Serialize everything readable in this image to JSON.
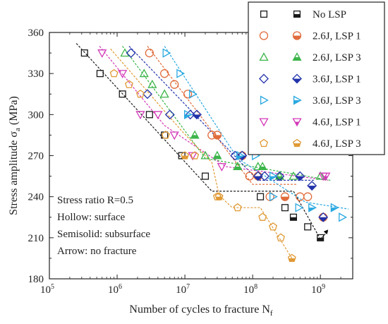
{
  "chart_data": {
    "type": "scatter",
    "x_scale": "log",
    "xlim": [
      100000,
      3000000000
    ],
    "ylim": [
      180,
      360
    ],
    "yticks": [
      180,
      210,
      240,
      270,
      300,
      330,
      360
    ],
    "xticks": [
      {
        "value": 100000,
        "base": "10",
        "exp": "5"
      },
      {
        "value": 1000000,
        "base": "10",
        "exp": "6"
      },
      {
        "value": 10000000,
        "base": "10",
        "exp": "7"
      },
      {
        "value": 100000000,
        "base": "10",
        "exp": "8"
      },
      {
        "value": 1000000000,
        "base": "10",
        "exp": "9"
      }
    ],
    "xlabel": "Number of cycles to fracture N",
    "xlabel_sub": "f",
    "ylabel": "Stress amplitude σ",
    "ylabel_sub": "a",
    "ylabel_unit": " (MPa)",
    "annotations": [
      "Stress ratio R=0.5",
      "Hollow: surface",
      "Semisolid: subsurface",
      "Arrow: no fracture"
    ],
    "legend_position": "top-right",
    "series": [
      {
        "name": "No LSP",
        "marker": "square",
        "color": "#1a1a1a",
        "hollow": [
          [
            330000,
            345
          ],
          [
            560000,
            330
          ],
          [
            1200000,
            315
          ],
          [
            3000000,
            300
          ],
          [
            5000000,
            285
          ],
          [
            9000000,
            270
          ],
          [
            20000000,
            255
          ],
          [
            130000000,
            240
          ],
          [
            300000000,
            232
          ],
          [
            650000000,
            218
          ]
        ],
        "solid": [
          [
            400000000,
            225
          ],
          [
            1000000000,
            210
          ]
        ],
        "fit": [
          [
            250000,
            352
          ],
          [
            25000000,
            244
          ],
          [
            400000000,
            244
          ],
          [
            1000000000,
            209
          ],
          [
            1300000000,
            215
          ]
        ],
        "arrow": [
          1300000000,
          216
        ]
      },
      {
        "name": "2.6J, LSP 1",
        "marker": "circle",
        "color": "#e06c3c",
        "hollow": [
          [
            3000000,
            345
          ],
          [
            5000000,
            330
          ],
          [
            7000000,
            322
          ],
          [
            11000000,
            315
          ],
          [
            25000000,
            285
          ],
          [
            90000000,
            255
          ],
          [
            180000000,
            240
          ],
          [
            500000000,
            240
          ],
          [
            650000000,
            240
          ]
        ],
        "solid": [
          [
            30000000,
            285
          ],
          [
            70000000,
            270
          ],
          [
            120000000,
            255
          ],
          [
            300000000,
            240
          ],
          [
            1100000000,
            225
          ]
        ],
        "fit": [
          [
            2800000,
            350
          ],
          [
            100000000,
            249
          ],
          [
            450000000,
            249
          ]
        ]
      },
      {
        "name": "2.6J, LSP 3",
        "marker": "triangle-up",
        "color": "#3cb54a",
        "hollow": [
          [
            1300000,
            345
          ],
          [
            2500000,
            330
          ],
          [
            3300000,
            322
          ],
          [
            5000000,
            315
          ],
          [
            20000000,
            270
          ],
          [
            60000000,
            262
          ],
          [
            120000000,
            262
          ],
          [
            400000000,
            255
          ],
          [
            1000000000,
            255
          ]
        ],
        "solid": [
          [
            14000000,
            285
          ],
          [
            30000000,
            270
          ],
          [
            60000000,
            262
          ],
          [
            140000000,
            262
          ],
          [
            250000000,
            255
          ]
        ],
        "fit": [
          [
            1200000,
            350
          ],
          [
            20000000,
            268
          ],
          [
            1400000000,
            252
          ]
        ]
      },
      {
        "name": "3.6J, LSP 1",
        "marker": "diamond",
        "color": "#2233aa",
        "hollow": [
          [
            1600000,
            345
          ],
          [
            2800000,
            315
          ],
          [
            6000000,
            300
          ],
          [
            12000000,
            300
          ],
          [
            55000000,
            270
          ],
          [
            150000000,
            255
          ],
          [
            250000000,
            255
          ]
        ],
        "solid": [
          [
            15000000,
            300
          ],
          [
            70000000,
            270
          ],
          [
            120000000,
            255
          ],
          [
            500000000,
            255
          ],
          [
            750000000,
            248
          ],
          [
            1100000000,
            225
          ]
        ],
        "fit": [
          [
            1500000,
            350
          ],
          [
            120000000,
            252
          ],
          [
            800000000,
            252
          ]
        ]
      },
      {
        "name": "3.6J, LSP 3",
        "marker": "triangle-right",
        "color": "#2aa8e0",
        "hollow": [
          [
            5300000,
            345
          ],
          [
            8500000,
            330
          ],
          [
            13000000,
            315
          ],
          [
            110000000,
            270
          ],
          [
            200000000,
            240
          ],
          [
            480000000,
            232
          ],
          [
            2100000000,
            225
          ]
        ],
        "solid": [
          [
            11000000,
            300
          ],
          [
            65000000,
            270
          ],
          [
            200000000,
            255
          ],
          [
            750000000,
            232
          ],
          [
            1600000000,
            232
          ]
        ],
        "fit": [
          [
            5000000,
            350
          ],
          [
            60000000,
            268
          ],
          [
            600000000,
            236
          ],
          [
            2600000000,
            231
          ]
        ]
      },
      {
        "name": "4.6J, LSP 1",
        "marker": "triangle-down",
        "color": "#d33ab8",
        "hollow": [
          [
            600000,
            345
          ],
          [
            1200000,
            330
          ],
          [
            2200000,
            300
          ],
          [
            4000000,
            300
          ],
          [
            7000000,
            285
          ],
          [
            13000000,
            270
          ],
          [
            35000000,
            262
          ],
          [
            1100000000,
            255
          ]
        ],
        "solid": [
          [
            1200000000,
            255
          ]
        ],
        "fit": [
          [
            550000,
            350
          ],
          [
            5000000,
            292
          ],
          [
            40000000,
            262
          ],
          [
            1300000000,
            252
          ]
        ]
      },
      {
        "name": "4.6J, LSP 3",
        "marker": "pentagon",
        "color": "#e09a35",
        "hollow": [
          [
            900000,
            330
          ],
          [
            1500000,
            322
          ],
          [
            2200000,
            315
          ],
          [
            5200000,
            285
          ],
          [
            14000000,
            270
          ],
          [
            30000000,
            240
          ],
          [
            60000000,
            232
          ],
          [
            140000000,
            225
          ],
          [
            200000000,
            218
          ],
          [
            260000000,
            210
          ]
        ],
        "solid": [
          [
            10000000,
            270
          ],
          [
            32000000,
            240
          ],
          [
            380000000,
            195
          ]
        ],
        "fit": [
          [
            800000,
            348
          ],
          [
            9000000,
            288
          ],
          [
            25000000,
            265
          ],
          [
            32000000,
            241
          ],
          [
            50000000,
            232
          ],
          [
            130000000,
            232
          ],
          [
            380000000,
            195
          ]
        ]
      }
    ]
  }
}
